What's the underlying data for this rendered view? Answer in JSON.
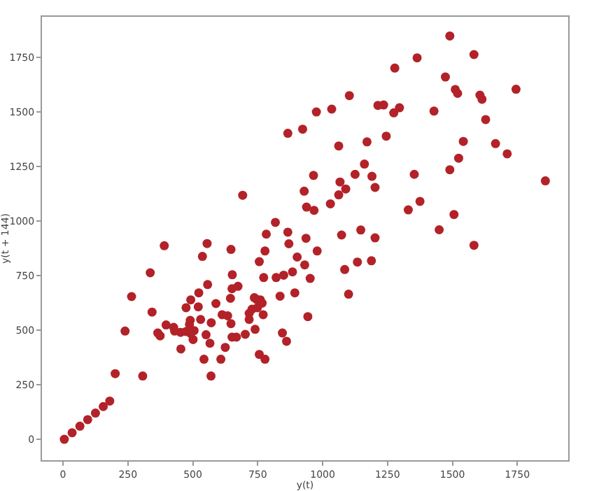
{
  "chart_data": {
    "type": "scatter",
    "xlabel": "y(t)",
    "ylabel": "y(t + 144)",
    "marker": "circle",
    "grid": false,
    "xlim": [
      -81,
      1946
    ],
    "ylim": [
      -96,
      1936
    ],
    "xticks": [
      0,
      250,
      500,
      750,
      1000,
      1250,
      1500,
      1750
    ],
    "yticks": [
      0,
      250,
      500,
      750,
      1000,
      1250,
      1500,
      1750
    ],
    "series": [
      {
        "color": "#b22228",
        "x": [
          976,
          866,
          923,
          965,
          692,
          929,
          938,
          967,
          818,
          783,
          866,
          870,
          936,
          390,
          555,
          647,
          778,
          979,
          1490,
          1583,
          1364,
          1278,
          1473,
          1511,
          1520,
          1606,
          1614,
          1745,
          1103,
          1035,
          1213,
          1235,
          1274,
          1296,
          1429,
          1628,
          1062,
          1171,
          1245,
          1542,
          1666,
          1711,
          1524,
          1161,
          1490,
          1125,
          1190,
          1353,
          1067,
          1089,
          1202,
          1858,
          1062,
          1375,
          1330,
          1030,
          1506,
          1073,
          1147,
          1202,
          1449,
          1583,
          952,
          1085,
          1134,
          1188,
          1100,
          943,
          537,
          652,
          336,
          756,
          902,
          931,
          884,
          773,
          821,
          850,
          836,
          893,
          264,
          343,
          239,
          201,
          307,
          365,
          374,
          397,
          426,
          430,
          453,
          454,
          474,
          487,
          490,
          492,
          501,
          505,
          474,
          492,
          521,
          523,
          530,
          543,
          551,
          557,
          566,
          570,
          571,
          589,
          608,
          613,
          625,
          634,
          645,
          647,
          651,
          651,
          668,
          674,
          702,
          717,
          717,
          728,
          737,
          740,
          746,
          749,
          760,
          767,
          771,
          756,
          778,
          845,
          861,
          5,
          35,
          65,
          95,
          125,
          155,
          180
        ],
        "values": [
          1500,
          1402,
          1421,
          1209,
          1118,
          1137,
          1064,
          1049,
          994,
          940,
          949,
          896,
          921,
          887,
          897,
          870,
          863,
          863,
          1848,
          1763,
          1748,
          1701,
          1660,
          1603,
          1585,
          1577,
          1558,
          1604,
          1575,
          1513,
          1530,
          1532,
          1496,
          1519,
          1504,
          1465,
          1344,
          1363,
          1389,
          1365,
          1355,
          1308,
          1288,
          1261,
          1235,
          1214,
          1205,
          1214,
          1179,
          1147,
          1154,
          1184,
          1120,
          1090,
          1051,
          1079,
          1030,
          936,
          959,
          923,
          960,
          889,
          737,
          778,
          812,
          818,
          665,
          562,
          838,
          754,
          763,
          814,
          835,
          799,
          767,
          741,
          741,
          752,
          656,
          671,
          654,
          583,
          496,
          301,
          290,
          487,
          474,
          524,
          513,
          496,
          490,
          414,
          494,
          526,
          545,
          485,
          457,
          498,
          603,
          639,
          607,
          671,
          549,
          367,
          479,
          709,
          440,
          290,
          534,
          622,
          367,
          571,
          421,
          566,
          646,
          530,
          690,
          468,
          468,
          701,
          481,
          577,
          549,
          596,
          649,
          504,
          641,
          603,
          639,
          624,
          571,
          389,
          367,
          487,
          449,
          0,
          30,
          60,
          90,
          120,
          150,
          175
        ]
      }
    ]
  }
}
